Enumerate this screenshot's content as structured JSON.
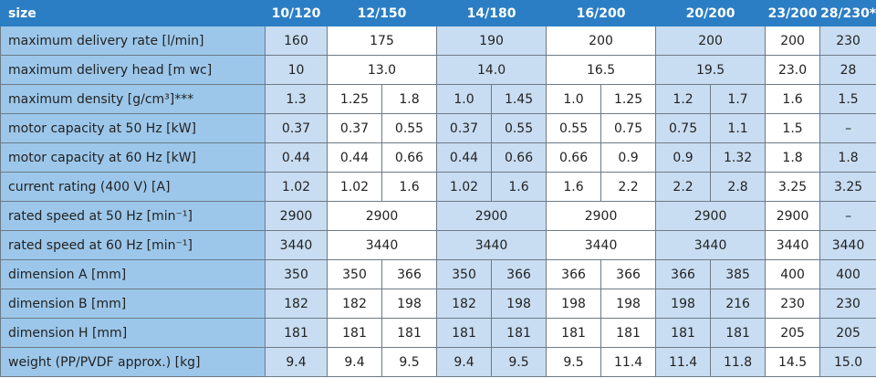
{
  "table": {
    "headers": [
      "size",
      "10/120",
      "12/150",
      "14/180",
      "16/200",
      "20/200",
      "23/200",
      "28/230*"
    ],
    "rows": [
      {
        "label": "maximum delivery rate [l/min]",
        "cells": [
          "160",
          "175",
          "190",
          "200",
          "200",
          "200",
          "230"
        ]
      },
      {
        "label": "maximum delivery head [m wc]",
        "cells": [
          "10",
          "13.0",
          "14.0",
          "16.5",
          "19.5",
          "23.0",
          "28"
        ]
      },
      {
        "label": "maximum density [g/cm³]***",
        "cells": [
          "1.3",
          "1.25",
          "1.8",
          "1.0",
          "1.45",
          "1.0",
          "1.25",
          "1.2",
          "1.7",
          "1.6",
          "1.5"
        ]
      },
      {
        "label": "motor capacity at 50 Hz [kW]",
        "cells": [
          "0.37",
          "0.37",
          "0.55",
          "0.37",
          "0.55",
          "0.55",
          "0.75",
          "0.75",
          "1.1",
          "1.5",
          "–"
        ]
      },
      {
        "label": "motor capacity at 60 Hz [kW]",
        "cells": [
          "0.44",
          "0.44",
          "0.66",
          "0.44",
          "0.66",
          "0.66",
          "0.9",
          "0.9",
          "1.32",
          "1.8",
          "1.8"
        ]
      },
      {
        "label": "current rating (400 V) [A]",
        "cells": [
          "1.02",
          "1.02",
          "1.6",
          "1.02",
          "1.6",
          "1.6",
          "2.2",
          "2.2",
          "2.8",
          "3.25",
          "3.25"
        ]
      },
      {
        "label": "rated speed at 50 Hz [min⁻¹]",
        "cells": [
          "2900",
          "2900",
          "2900",
          "2900",
          "2900",
          "2900",
          "–"
        ]
      },
      {
        "label": "rated speed at 60 Hz [min⁻¹]",
        "cells": [
          "3440",
          "3440",
          "3440",
          "3440",
          "3440",
          "3440",
          "3440"
        ]
      },
      {
        "label": "dimension A [mm]",
        "cells": [
          "350",
          "350",
          "366",
          "350",
          "366",
          "366",
          "366",
          "366",
          "385",
          "400",
          "400"
        ]
      },
      {
        "label": "dimension B [mm]",
        "cells": [
          "182",
          "182",
          "198",
          "182",
          "198",
          "198",
          "198",
          "198",
          "216",
          "230",
          "230"
        ]
      },
      {
        "label": "dimension H [mm]",
        "cells": [
          "181",
          "181",
          "181",
          "181",
          "181",
          "181",
          "181",
          "181",
          "181",
          "205",
          "205"
        ]
      },
      {
        "label": "weight (PP/PVDF approx.) [kg]",
        "cells": [
          "9.4",
          "9.4",
          "9.5",
          "9.4",
          "9.5",
          "9.5",
          "11.4",
          "11.4",
          "11.8",
          "14.5",
          "15.0"
        ]
      }
    ]
  }
}
